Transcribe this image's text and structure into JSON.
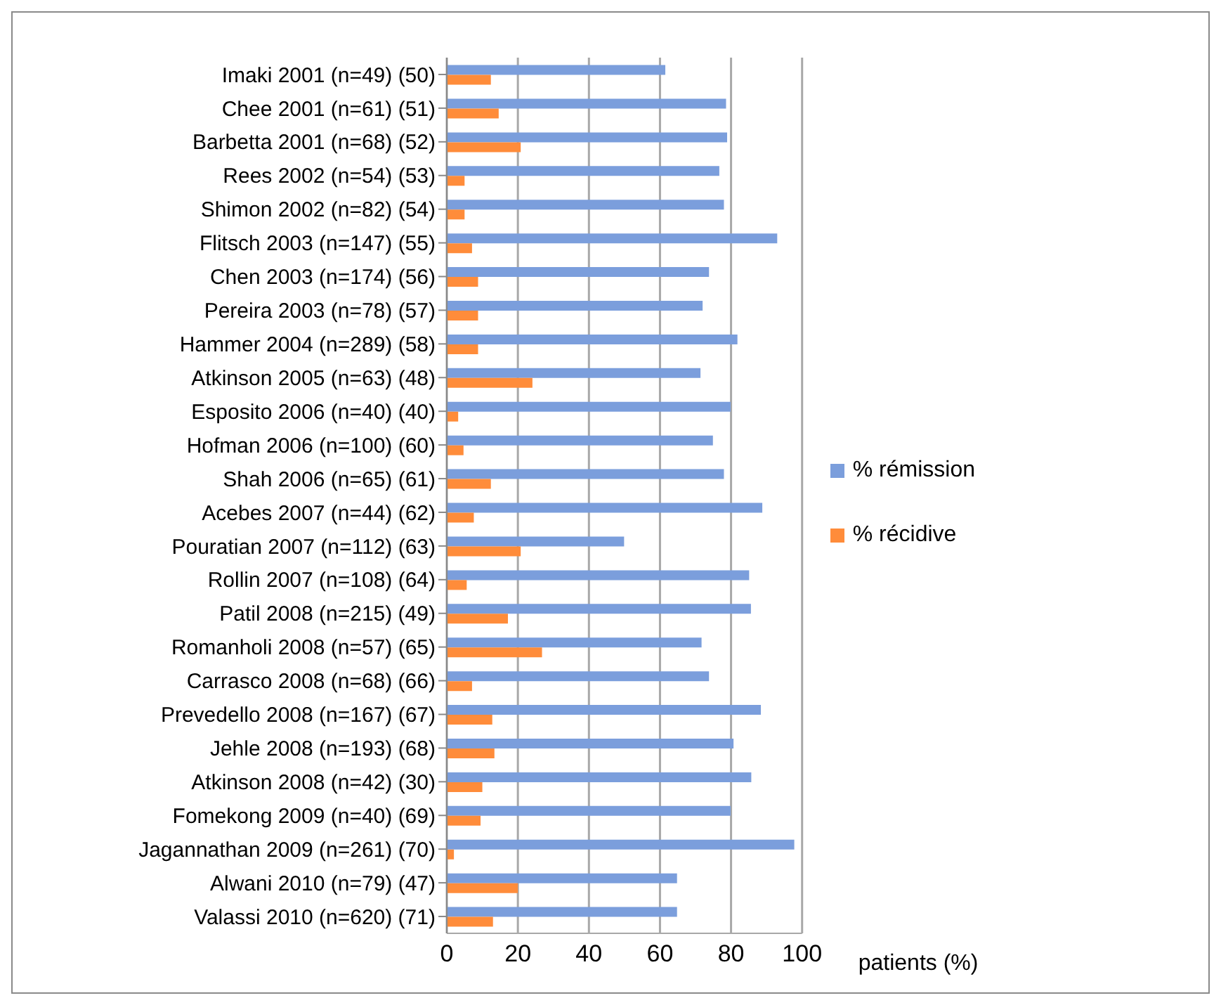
{
  "chart_data": {
    "type": "bar",
    "orientation": "horizontal",
    "xlabel": "patients (%)",
    "categories": [
      "Imaki 2001 (n=49)  (50)",
      "Chee 2001 (n=61) (51)",
      "Barbetta 2001 (n=68) (52)",
      "Rees 2002 (n=54) (53)",
      "Shimon 2002 (n=82) (54)",
      "Flitsch 2003 (n=147) (55)",
      "Chen 2003 (n=174) (56)",
      "Pereira 2003 (n=78) (57)",
      "Hammer 2004 (n=289) (58)",
      "Atkinson 2005 (n=63) (48)",
      "Esposito 2006 (n=40) (40)",
      "Hofman 2006 (n=100) (60)",
      "Shah 2006 (n=65) (61)",
      "Acebes 2007 (n=44) (62)",
      "Pouratian 2007 (n=112) (63)",
      "Rollin 2007 (n=108) (64)",
      "Patil 2008 (n=215) (49)",
      "Romanholi 2008 (n=57) (65)",
      "Carrasco 2008 (n=68) (66)",
      "Prevedello 2008 (n=167) (67)",
      "Jehle 2008 (n=193) (68)",
      "Atkinson 2008 (n=42) (30)",
      "Fomekong 2009 (n=40) (69)",
      "Jagannathan 2009 (n=261) (70)",
      "Alwani 2010 (n=79) (47)",
      "Valassi 2010 (n=620) (71)"
    ],
    "series": [
      {
        "name": "% rémission",
        "color": "#7b9edc",
        "values": [
          61.5,
          78.6,
          78.9,
          76.7,
          78,
          93,
          73.8,
          72,
          81.8,
          71.4,
          79.9,
          74.9,
          78,
          88.8,
          49.9,
          85.1,
          85.6,
          71.7,
          73.8,
          88.4,
          80.7,
          85.7,
          79.9,
          97.8,
          64.8,
          64.8
        ]
      },
      {
        "name": "% récidive",
        "color": "#ff8c3a",
        "values": [
          12.4,
          14.6,
          20.8,
          5,
          5,
          7.1,
          8.8,
          8.8,
          8.8,
          24.1,
          3.2,
          4.7,
          12.4,
          7.6,
          20.8,
          5.6,
          17.2,
          26.8,
          7.1,
          12.8,
          13.4,
          10,
          9.5,
          2,
          20,
          13
        ]
      }
    ],
    "xlim": [
      0,
      100
    ],
    "xticks": [
      0,
      20,
      40,
      60,
      80,
      100
    ],
    "grid": "x",
    "legend": "right"
  }
}
